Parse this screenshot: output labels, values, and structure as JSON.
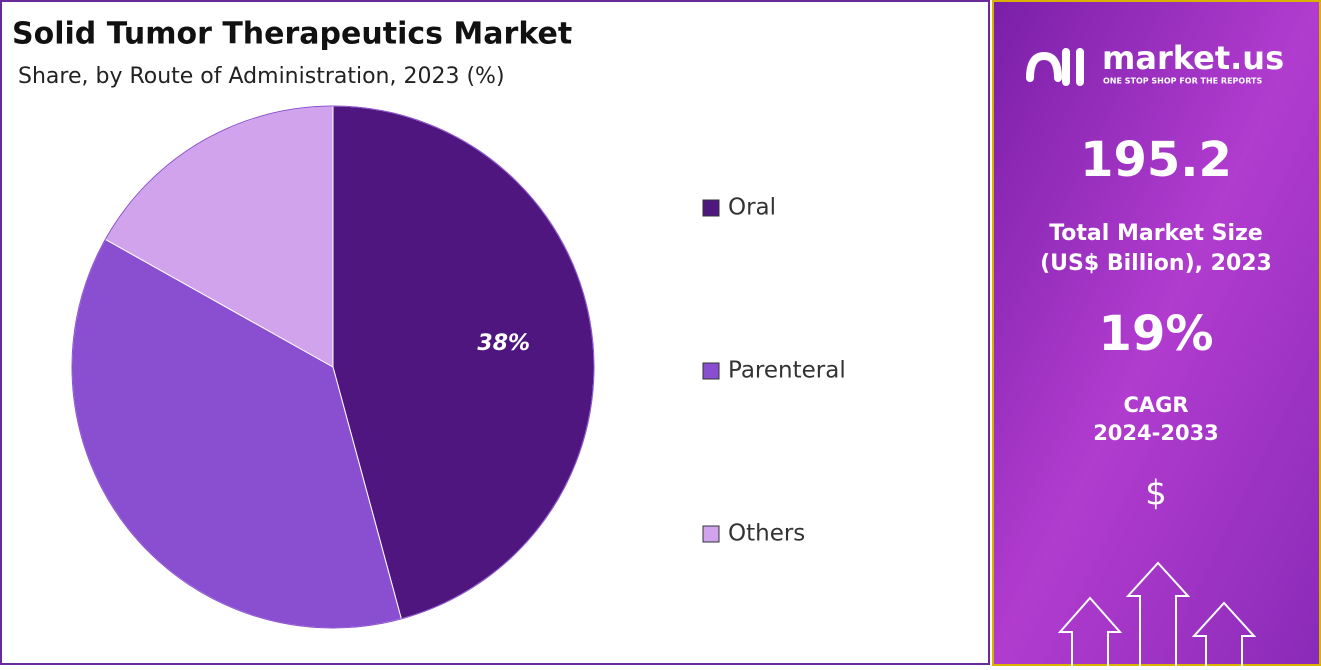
{
  "chart_data": {
    "type": "pie",
    "title": "Solid Tumor Therapeutics  Market",
    "subtitle": "Share, by Route of Administration, 2023 (%)",
    "categories": [
      "Oral",
      "Parenteral",
      "Others"
    ],
    "values": [
      38,
      31,
      14
    ],
    "value_labels": [
      "38%",
      null,
      null
    ],
    "colors": [
      "#4f1680",
      "#8a4fd0",
      "#d0a3ec"
    ],
    "legend": "right"
  },
  "panel": {
    "logo": "market.us",
    "tagline": "ONE STOP SHOP FOR THE REPORTS",
    "market_size": "195.2",
    "market_size_label": [
      "Total Market Size",
      "(US$ Billion), 2023"
    ],
    "cagr": "19%",
    "cagr_label": [
      "CAGR",
      "2024-2033"
    ],
    "currency": "$"
  }
}
